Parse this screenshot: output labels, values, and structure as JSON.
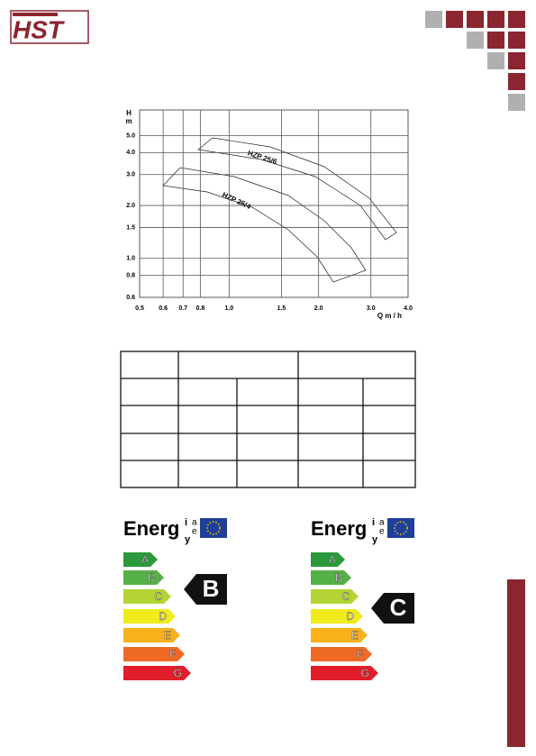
{
  "logo": {
    "text": "HST"
  },
  "chart": {
    "y_label_top": "H",
    "y_label_unit": "m",
    "x_label": "Q m / h",
    "xlim": [
      0.5,
      4.0
    ],
    "ylim": [
      0.6,
      7.0
    ],
    "xticks": [
      0.5,
      0.6,
      0.7,
      0.8,
      {
        "value": 1,
        "label": "1.0"
      },
      1.5,
      {
        "value": 2,
        "label": "2.0"
      },
      {
        "value": 3,
        "label": "3.0"
      },
      {
        "value": 4,
        "label": "4.0"
      }
    ],
    "yticks": [
      0.6,
      0.8,
      {
        "value": 1,
        "label": "1.0"
      },
      1.5,
      {
        "value": 2,
        "label": "2.0"
      },
      {
        "value": 3,
        "label": "3.0"
      },
      {
        "value": 4,
        "label": "4.0"
      },
      {
        "value": 5,
        "label": "5.0"
      }
    ],
    "curves": [
      "HZP 25/6",
      "HZP 25/4"
    ]
  },
  "energy": {
    "brand": [
      "Energ",
      "i",
      "a",
      "e",
      "y"
    ],
    "scale": [
      "A",
      "B",
      "C",
      "D",
      "E",
      "F",
      "G"
    ],
    "colors": [
      "#2a9a3c",
      "#55b045",
      "#b4d334",
      "#f1ea1c",
      "#f9b11b",
      "#ef6a24",
      "#e11e2a"
    ],
    "labels": [
      {
        "grade": "B"
      },
      {
        "grade": "C"
      }
    ]
  }
}
